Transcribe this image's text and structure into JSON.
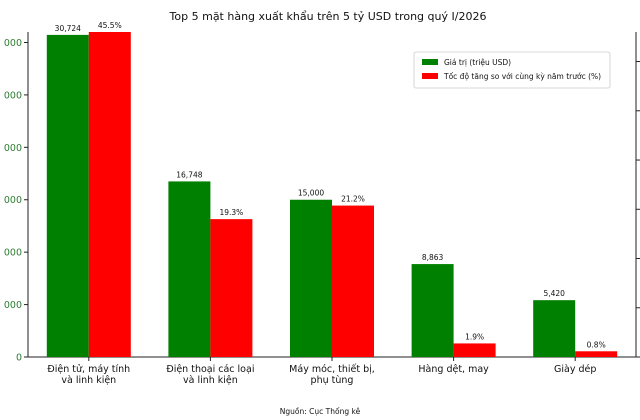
{
  "chart_data": {
    "type": "bar",
    "title": "Top 5 mặt hàng xuất khẩu trên 5 tỷ USD trong quý I/2026",
    "categories": [
      [
        "Điện tử, máy tính",
        "và linh kiện"
      ],
      [
        "Điện thoại các loại",
        "và linh kiện"
      ],
      [
        "Máy móc, thiết bị,",
        "phụ tùng"
      ],
      [
        "Hàng dệt, may"
      ],
      [
        "Giày dép"
      ]
    ],
    "series": [
      {
        "name": "Giá trị (triệu USD)",
        "color": "#008000",
        "values": [
          30724,
          16748,
          15000,
          8863,
          5420
        ],
        "labels": [
          "30,724",
          "16,748",
          "15,000",
          "8,863",
          "5,420"
        ],
        "axis": "left",
        "ylim": [
          0,
          31000
        ]
      },
      {
        "name": "Tốc độ tăng so với cùng kỳ năm trước (%)",
        "color": "#ff0000",
        "values": [
          45.5,
          19.3,
          21.2,
          1.9,
          0.8
        ],
        "labels": [
          "45.5%",
          "19.3%",
          "21.2%",
          "1.9%",
          "0.8%"
        ],
        "axis": "right",
        "ylim": [
          0,
          45.5
        ]
      }
    ],
    "yaxis_left": {
      "ticks": [
        0,
        5000,
        10000,
        15000,
        20000,
        25000,
        30000
      ],
      "tick_labels": [
        "0",
        "000",
        "000",
        "000",
        "000",
        "000",
        "000"
      ]
    },
    "legend_position": "top-right",
    "grid": false,
    "source": "Nguồn: Cục Thống kê"
  }
}
